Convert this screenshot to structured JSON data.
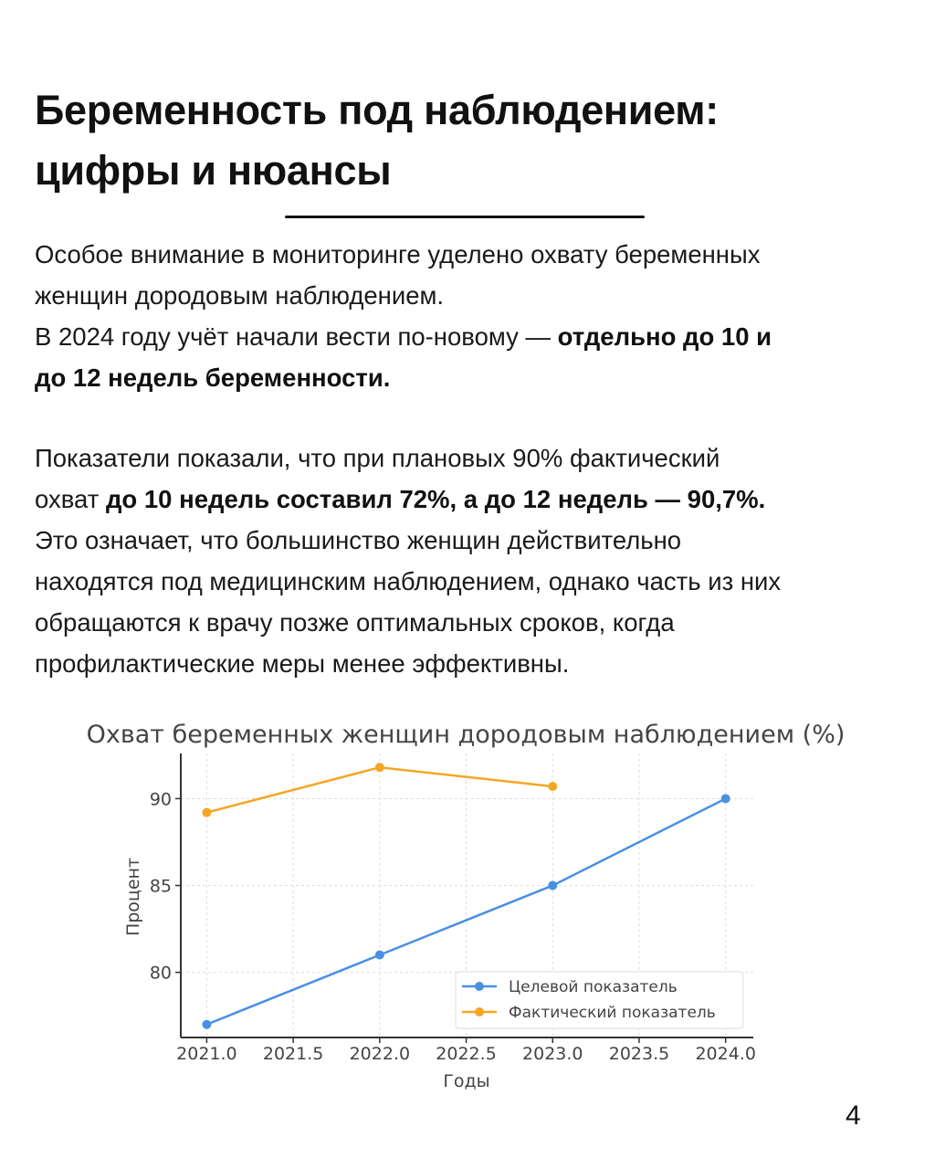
{
  "title": {
    "line1": "Беременность под наблюдением:",
    "line2": "цифры и нюансы"
  },
  "paragraph1": {
    "line1": "Особое внимание в мониторинге уделено охвату беременных",
    "line2": "женщин дородовым наблюдением.",
    "line3_regular": "В 2024 году учёт начали вести по-новому — ",
    "line3_bold": "отдельно до 10 и",
    "line4_bold": "до 12 недель беременности."
  },
  "paragraph2": {
    "line1": "Показатели показали, что при плановых 90% фактический",
    "line2_regular": "охват ",
    "line2_bold": "до 10 недель составил 72%, а до 12 недель — 90,7%.",
    "line3": "Это означает, что большинство женщин действительно",
    "line4": "находятся под медицинским наблюдением, однако часть из них",
    "line5": "обращаются к врачу позже оптимальных сроков, когда",
    "line6": "профилактические меры менее эффективны."
  },
  "page_number": "4",
  "chart_data": {
    "type": "line",
    "title": "Охват беременных женщин дородовым наблюдением (%)",
    "xlabel": "Годы",
    "ylabel": "Процент",
    "xlim": [
      2020.85,
      2024.16
    ],
    "ylim": [
      76.25,
      92.6
    ],
    "xticks": [
      "2021.0",
      "2021.5",
      "2022.0",
      "2022.5",
      "2023.0",
      "2023.5",
      "2024.0"
    ],
    "xtick_values": [
      2021.0,
      2021.5,
      2022.0,
      2022.5,
      2023.0,
      2023.5,
      2024.0
    ],
    "yticks": [
      "80",
      "85",
      "90"
    ],
    "ytick_values": [
      80,
      85,
      90
    ],
    "grid": true,
    "legend_position": "lower-right",
    "series": [
      {
        "name": "Целевой показатель",
        "color": "#4a90e2",
        "x": [
          2021,
          2022,
          2023,
          2024
        ],
        "y": [
          77,
          81,
          85,
          90
        ]
      },
      {
        "name": "Фактический показатель",
        "color": "#f5a623",
        "x": [
          2021,
          2022,
          2023
        ],
        "y": [
          89.2,
          91.8,
          90.7
        ]
      }
    ]
  }
}
